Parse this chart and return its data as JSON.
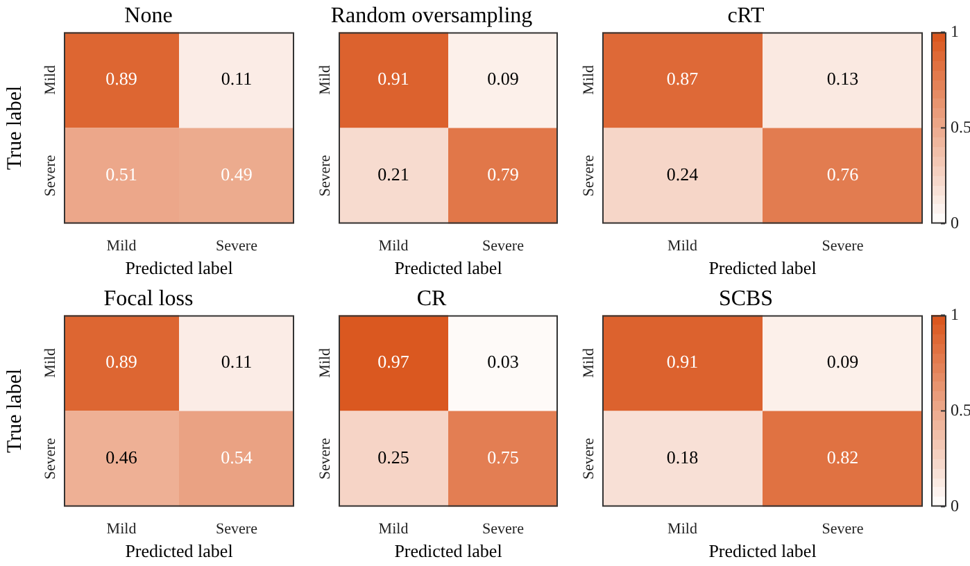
{
  "chart_data": [
    {
      "type": "heatmap",
      "title": "None",
      "xlabel": "Predicted label",
      "ylabel": "True label",
      "categories": [
        "Mild",
        "Severe"
      ],
      "y_categories": [
        "Mild",
        "Severe"
      ],
      "cells": [
        [
          0.89,
          0.11
        ],
        [
          0.51,
          0.49
        ]
      ],
      "color": "#d95319",
      "data_labels": true
    },
    {
      "type": "heatmap",
      "title": "Random oversampling",
      "xlabel": "Predicted label",
      "categories": [
        "Mild",
        "Severe"
      ],
      "y_categories": [
        "Mild",
        "Severe"
      ],
      "cells": [
        [
          0.91,
          0.09
        ],
        [
          0.21,
          0.79
        ]
      ],
      "color": "#d95319",
      "data_labels": true
    },
    {
      "type": "heatmap",
      "title": "cRT",
      "xlabel": "Predicted label",
      "categories": [
        "Mild",
        "Severe"
      ],
      "y_categories": [
        "Mild",
        "Severe"
      ],
      "cells": [
        [
          0.87,
          0.13
        ],
        [
          0.24,
          0.76
        ]
      ],
      "clim": [
        0,
        1
      ],
      "cticks": [
        0,
        0.5,
        1
      ],
      "color": "#d95319",
      "data_labels": true
    },
    {
      "type": "heatmap",
      "title": "Focal loss",
      "xlabel": "Predicted label",
      "ylabel": "True label",
      "categories": [
        "Mild",
        "Severe"
      ],
      "y_categories": [
        "Mild",
        "Severe"
      ],
      "cells": [
        [
          0.89,
          0.11
        ],
        [
          0.46,
          0.54
        ]
      ],
      "color": "#d95319",
      "data_labels": true
    },
    {
      "type": "heatmap",
      "title": "CR",
      "xlabel": "Predicted label",
      "categories": [
        "Mild",
        "Severe"
      ],
      "y_categories": [
        "Mild",
        "Severe"
      ],
      "cells": [
        [
          0.97,
          0.03
        ],
        [
          0.25,
          0.75
        ]
      ],
      "color": "#d95319",
      "data_labels": true
    },
    {
      "type": "heatmap",
      "title": "SCBS",
      "xlabel": "Predicted label",
      "categories": [
        "Mild",
        "Severe"
      ],
      "y_categories": [
        "Mild",
        "Severe"
      ],
      "cells": [
        [
          0.91,
          0.09
        ],
        [
          0.18,
          0.82
        ]
      ],
      "clim": [
        0,
        1
      ],
      "cticks": [
        0,
        0.5,
        1
      ],
      "color": "#d95319",
      "data_labels": true
    }
  ]
}
